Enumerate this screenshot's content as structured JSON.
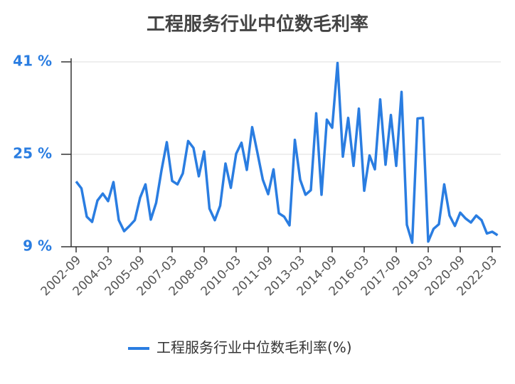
{
  "chart_data": {
    "type": "line",
    "title": "工程服务行业中位数毛利率",
    "categories": [
      "2002-09",
      null,
      null,
      null,
      null,
      null,
      "2004-03",
      null,
      null,
      null,
      null,
      null,
      "2005-09",
      null,
      null,
      null,
      null,
      null,
      "2007-03",
      null,
      null,
      null,
      null,
      null,
      "2008-09",
      null,
      null,
      null,
      null,
      null,
      "2010-03",
      null,
      null,
      null,
      null,
      null,
      "2011-09",
      null,
      null,
      null,
      null,
      null,
      "2013-03",
      null,
      null,
      null,
      null,
      null,
      "2014-09",
      null,
      null,
      null,
      null,
      null,
      "2016-03",
      null,
      null,
      null,
      null,
      null,
      "2017-09",
      null,
      null,
      null,
      null,
      null,
      "2019-03",
      null,
      null,
      null,
      null,
      null,
      "2020-09",
      null,
      null,
      null,
      null,
      null,
      "2022-03",
      null
    ],
    "series": [
      {
        "name": "工程服务行业中位数毛利率(%)",
        "color": "#2a7de1",
        "values": [
          20.3,
          19.1,
          14.2,
          13.3,
          17.0,
          18.2,
          16.9,
          20.2,
          13.6,
          11.7,
          12.6,
          13.6,
          17.5,
          19.8,
          13.7,
          16.6,
          22.2,
          27.1,
          20.4,
          19.8,
          21.7,
          27.3,
          26.1,
          21.2,
          25.5,
          15.6,
          13.6,
          16.1,
          23.4,
          19.2,
          25.1,
          27.0,
          22.3,
          29.7,
          25.2,
          20.6,
          18.1,
          22.4,
          14.8,
          14.2,
          12.7,
          27.5,
          20.6,
          18.0,
          18.8,
          32.1,
          18.0,
          31.0,
          29.6,
          40.8,
          24.6,
          31.3,
          23.0,
          32.9,
          18.7,
          24.8,
          22.4,
          34.5,
          23.2,
          31.8,
          23.0,
          35.8,
          12.8,
          9.7,
          31.2,
          31.3,
          9.9,
          12.1,
          12.9,
          19.8,
          14.4,
          12.6,
          14.9,
          13.9,
          13.2,
          14.4,
          13.6,
          11.3,
          11.6,
          11.0
        ]
      }
    ],
    "ylim": [
      9,
      41
    ],
    "yticks": [
      {
        "value": 9,
        "label": "9 %"
      },
      {
        "value": 25,
        "label": "25 %"
      },
      {
        "value": 41,
        "label": "41 %"
      }
    ],
    "grid": true,
    "legend": "bottom"
  }
}
